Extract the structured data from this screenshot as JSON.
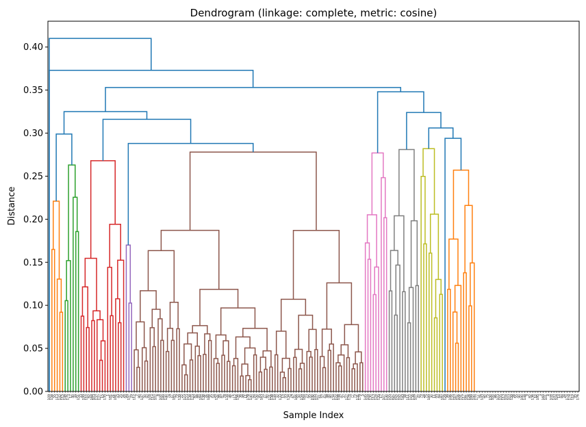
{
  "chart_data": {
    "type": "dendrogram",
    "title": "Dendrogram (linkage: complete, metric: cosine)",
    "xlabel": "Sample Index",
    "ylabel": "Distance",
    "ylim": [
      0,
      0.43
    ],
    "yticks": [
      0.0,
      0.05,
      0.1,
      0.15,
      0.2,
      0.25,
      0.3,
      0.35,
      0.4
    ],
    "ytick_labels": [
      "0.00",
      "0.05",
      "0.10",
      "0.15",
      "0.20",
      "0.25",
      "0.30",
      "0.35",
      "0.40"
    ],
    "n_leaves": 200,
    "above_threshold_color": "#1f77b4",
    "top_merges": [
      0.41,
      0.373,
      0.353,
      0.348,
      0.325,
      0.324,
      0.316,
      0.306,
      0.299,
      0.294,
      0.288
    ],
    "clusters": [
      {
        "color": "#ff7f0e",
        "leaves": 5,
        "height": 0.221
      },
      {
        "color": "#2ca02c",
        "leaves": 6,
        "height": 0.263
      },
      {
        "color": "#d62728",
        "leaves": 17,
        "height": 0.268
      },
      {
        "color": "#9467bd",
        "leaves": 3,
        "height": 0.17
      },
      {
        "color": "#8c564b",
        "leaves": 87,
        "height": 0.278
      },
      {
        "color": "#e377c2",
        "leaves": 9,
        "height": 0.277
      },
      {
        "color": "#7f7f7f",
        "leaves": 12,
        "height": 0.281
      },
      {
        "color": "#bcbd22",
        "leaves": 9,
        "height": 0.282
      },
      {
        "color": "#17becf",
        "leaves": 1,
        "height": 0.216
      },
      {
        "color": "#ff7f0e",
        "leaves": 11,
        "height": 0.257
      }
    ],
    "x_tick_labels": [
      "109",
      "158",
      "55",
      "113",
      "142",
      "115",
      "148",
      "175",
      "17",
      "40",
      "49",
      "151",
      "33",
      "199",
      "110",
      "62",
      "164",
      "103",
      "137",
      "127",
      "15",
      "135",
      "1",
      "181",
      "21",
      "191",
      "43",
      "25",
      "26",
      "99",
      "157",
      "29",
      "112",
      "7",
      "80",
      "147",
      "50",
      "92",
      "104",
      "114",
      "102",
      "8",
      "100",
      "189",
      "140",
      "74",
      "27",
      "165",
      "79",
      "139",
      "22",
      "123",
      "123",
      "138",
      "123",
      "82",
      "88",
      "184",
      "138",
      "31",
      "188",
      "35",
      "54",
      "152",
      "86",
      "87",
      "78",
      "134",
      "46",
      "71",
      "112",
      "156",
      "36",
      "48",
      "11",
      "178",
      "140",
      "94",
      "150",
      "95",
      "163",
      "27",
      "60",
      "121",
      "138",
      "149",
      "32",
      "133",
      "15",
      "93",
      "134",
      "74",
      "67",
      "166",
      "50",
      "159",
      "164",
      "23",
      "95",
      "190",
      "145",
      "107",
      "61",
      "57",
      "64",
      "48",
      "80",
      "134",
      "122",
      "148",
      "47",
      "37",
      "127",
      "178",
      "77",
      "75",
      "131",
      "179",
      "5",
      "145",
      "109",
      "130",
      "113",
      "124",
      "135",
      "17",
      "107",
      "130",
      "155",
      "157",
      "162",
      "152",
      "192",
      "143",
      "58",
      "111",
      "122",
      "138",
      "107",
      "20",
      "79",
      "24",
      "75",
      "189",
      "30",
      "11",
      "93",
      "84",
      "182",
      "129",
      "39",
      "196",
      "125",
      "167",
      "106",
      "151",
      "117",
      "181",
      "126",
      "199",
      "190",
      "177",
      "91",
      "143",
      "60",
      "75",
      "150",
      "100",
      "86",
      "103",
      "155",
      "113",
      "104",
      "103",
      "159",
      "28",
      "55",
      "90",
      "190",
      "148",
      "9",
      "82",
      "136",
      "10",
      "195",
      "3",
      "169",
      "101",
      "4",
      "108",
      "143",
      "104",
      "14",
      "84",
      "28",
      "174",
      "174",
      "119",
      "95",
      "176"
    ]
  }
}
